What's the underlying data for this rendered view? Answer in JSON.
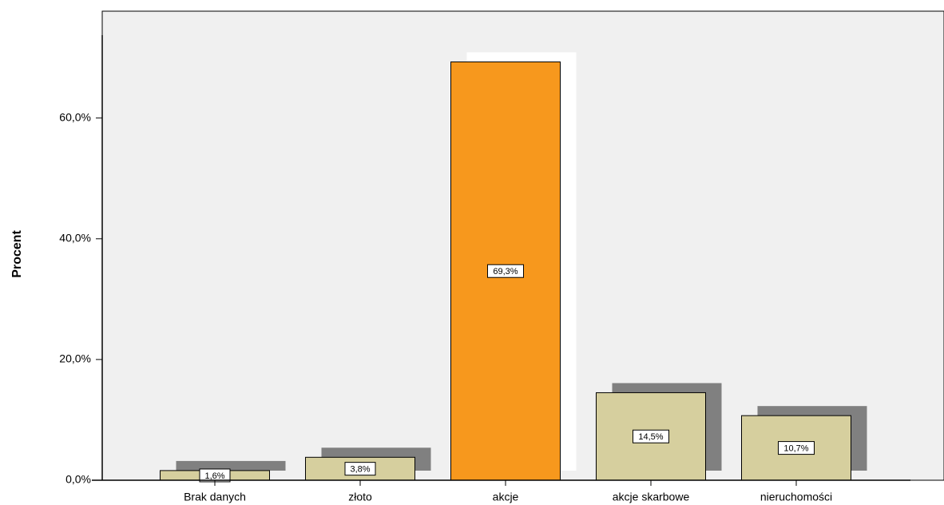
{
  "chart_data": {
    "type": "bar",
    "y_label": "Procent",
    "categories": [
      "Brak danych",
      "złoto",
      "akcje",
      "akcje skarbowe",
      "nieruchomości"
    ],
    "values": [
      1.6,
      3.8,
      69.3,
      14.5,
      10.7
    ],
    "value_labels": [
      "1,6%",
      "3,8%",
      "69,3%",
      "14,5%",
      "10,7%"
    ],
    "colors": [
      "#d6cf9e",
      "#d6cf9e",
      "#f7981d",
      "#d6cf9e",
      "#d6cf9e"
    ],
    "shadow_colors": [
      "#808080",
      "#808080",
      "#ffffff",
      "#808080",
      "#808080"
    ],
    "ylim": [
      0,
      77.7
    ],
    "yticks": [
      {
        "value": 0,
        "label": "0,0%"
      },
      {
        "value": 20,
        "label": "20,0%"
      },
      {
        "value": 40,
        "label": "40,0%"
      },
      {
        "value": 60,
        "label": "60,0%"
      }
    ],
    "grid": false
  }
}
